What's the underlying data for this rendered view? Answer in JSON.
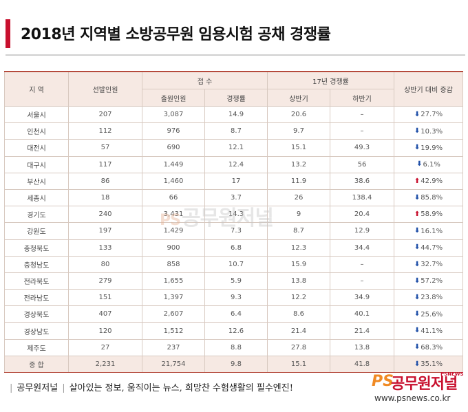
{
  "title": "2018년 지역별 소방공무원 임용시험 공채 경쟁률",
  "headers": {
    "region": "지 역",
    "quota": "선발인원",
    "reception": "접 수",
    "applicants": "출원인원",
    "ratio": "경쟁률",
    "year17": "17년 경쟁률",
    "first_half": "상반기",
    "second_half": "하반기",
    "change": "상반기 대비 증감"
  },
  "rows": [
    {
      "region": "서울시",
      "quota": "207",
      "applicants": "3,087",
      "ratio": "14.9",
      "h1": "20.6",
      "h2": "–",
      "change": "27.7%",
      "dir": "down"
    },
    {
      "region": "인천시",
      "quota": "112",
      "applicants": "976",
      "ratio": "8.7",
      "h1": "9.7",
      "h2": "–",
      "change": "10.3%",
      "dir": "down"
    },
    {
      "region": "대전시",
      "quota": "57",
      "applicants": "690",
      "ratio": "12.1",
      "h1": "15.1",
      "h2": "49.3",
      "change": "19.9%",
      "dir": "down"
    },
    {
      "region": "대구시",
      "quota": "117",
      "applicants": "1,449",
      "ratio": "12.4",
      "h1": "13.2",
      "h2": "56",
      "change": "6.1%",
      "dir": "down"
    },
    {
      "region": "부산시",
      "quota": "86",
      "applicants": "1,460",
      "ratio": "17",
      "h1": "11.9",
      "h2": "38.6",
      "change": "42.9%",
      "dir": "up"
    },
    {
      "region": "세종시",
      "quota": "18",
      "applicants": "66",
      "ratio": "3.7",
      "h1": "26",
      "h2": "138.4",
      "change": "85.8%",
      "dir": "down"
    },
    {
      "region": "경기도",
      "quota": "240",
      "applicants": "3,431",
      "ratio": "14.3",
      "h1": "9",
      "h2": "20.4",
      "change": "58.9%",
      "dir": "up"
    },
    {
      "region": "강원도",
      "quota": "197",
      "applicants": "1,429",
      "ratio": "7.3",
      "h1": "8.7",
      "h2": "12.9",
      "change": "16.1%",
      "dir": "down"
    },
    {
      "region": "충청북도",
      "quota": "133",
      "applicants": "900",
      "ratio": "6.8",
      "h1": "12.3",
      "h2": "34.4",
      "change": "44.7%",
      "dir": "down"
    },
    {
      "region": "충청남도",
      "quota": "80",
      "applicants": "858",
      "ratio": "10.7",
      "h1": "15.9",
      "h2": "–",
      "change": "32.7%",
      "dir": "down"
    },
    {
      "region": "전라북도",
      "quota": "279",
      "applicants": "1,655",
      "ratio": "5.9",
      "h1": "13.8",
      "h2": "–",
      "change": "57.2%",
      "dir": "down"
    },
    {
      "region": "전라남도",
      "quota": "151",
      "applicants": "1,397",
      "ratio": "9.3",
      "h1": "12.2",
      "h2": "34.9",
      "change": "23.8%",
      "dir": "down"
    },
    {
      "region": "경상북도",
      "quota": "407",
      "applicants": "2,607",
      "ratio": "6.4",
      "h1": "8.6",
      "h2": "40.1",
      "change": "25.6%",
      "dir": "down"
    },
    {
      "region": "경상남도",
      "quota": "120",
      "applicants": "1,512",
      "ratio": "12.6",
      "h1": "21.4",
      "h2": "21.4",
      "change": "41.1%",
      "dir": "down"
    },
    {
      "region": "제주도",
      "quota": "27",
      "applicants": "237",
      "ratio": "8.8",
      "h1": "27.8",
      "h2": "13.8",
      "change": "68.3%",
      "dir": "down"
    }
  ],
  "total": {
    "region": "종 합",
    "quota": "2,231",
    "applicants": "21,754",
    "ratio": "9.8",
    "h1": "15.1",
    "h2": "41.8",
    "change": "35.1%",
    "dir": "down"
  },
  "watermark": {
    "ps": "PS",
    "name": "공무원저널"
  },
  "footer": {
    "brand": "공무원저널",
    "slogan": "살아있는 정보, 움직이는 뉴스, 희망찬 수험생활의 필수엔진!"
  },
  "logo": {
    "ps": "PS",
    "name": "공무원저널",
    "small": "PSNEWS",
    "url": "www.psnews.co.kr"
  },
  "colors": {
    "accent": "#c8102e",
    "header_bg": "#f6e9e3",
    "down_arrow": "#1f4fa8",
    "up_arrow": "#c8102e",
    "logo_orange": "#f08a24"
  },
  "icons": {
    "down": "arrow-down-icon",
    "up": "arrow-up-icon"
  }
}
